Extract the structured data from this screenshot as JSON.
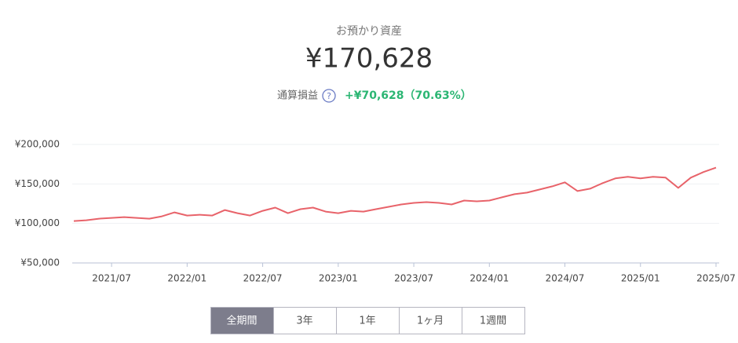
{
  "header": {
    "title": "お預かり資産",
    "amount": "¥170,628",
    "profit_label": "通算損益",
    "help": "?",
    "profit_value": "+¥70,628（70.63%）"
  },
  "chart_data": {
    "type": "line",
    "x": [
      "2021/04",
      "2021/05",
      "2021/06",
      "2021/07",
      "2021/08",
      "2021/09",
      "2021/10",
      "2021/11",
      "2021/12",
      "2022/01",
      "2022/02",
      "2022/03",
      "2022/04",
      "2022/05",
      "2022/06",
      "2022/07",
      "2022/08",
      "2022/09",
      "2022/10",
      "2022/11",
      "2022/12",
      "2023/01",
      "2023/02",
      "2023/03",
      "2023/04",
      "2023/05",
      "2023/06",
      "2023/07",
      "2023/08",
      "2023/09",
      "2023/10",
      "2023/11",
      "2023/12",
      "2024/01",
      "2024/02",
      "2024/03",
      "2024/04",
      "2024/05",
      "2024/06",
      "2024/07",
      "2024/08",
      "2024/09",
      "2024/10",
      "2024/11",
      "2024/12",
      "2025/01",
      "2025/02",
      "2025/03",
      "2025/04",
      "2025/05",
      "2025/06",
      "2025/07"
    ],
    "series": [
      {
        "color": "#e8636a",
        "values": [
          103000,
          104000,
          106000,
          107000,
          108000,
          107000,
          106000,
          109000,
          114000,
          110000,
          111000,
          110000,
          117000,
          113000,
          110000,
          116000,
          120000,
          113000,
          118000,
          120000,
          115000,
          113000,
          116000,
          115000,
          118000,
          121000,
          124000,
          126000,
          127000,
          126000,
          124000,
          129000,
          128000,
          129000,
          133000,
          137000,
          139000,
          143000,
          147000,
          152000,
          141000,
          144000,
          151000,
          157000,
          159000,
          157000,
          159000,
          158000,
          145000,
          158000,
          165000,
          170628
        ]
      }
    ],
    "xticks": [
      "2021/07",
      "2022/01",
      "2022/07",
      "2023/01",
      "2023/07",
      "2024/01",
      "2024/07",
      "2025/01",
      "2025/07"
    ],
    "ylim": [
      50000,
      200000
    ],
    "yticks": [
      {
        "value": 50000,
        "label": "¥50,000"
      },
      {
        "value": 100000,
        "label": "¥100,000"
      },
      {
        "value": 150000,
        "label": "¥150,000"
      },
      {
        "value": 200000,
        "label": "¥200,000"
      }
    ],
    "grid": true
  },
  "buttons": {
    "labels": [
      "全期間",
      "3年",
      "1年",
      "1ヶ月",
      "1週間"
    ],
    "selected": 0
  }
}
